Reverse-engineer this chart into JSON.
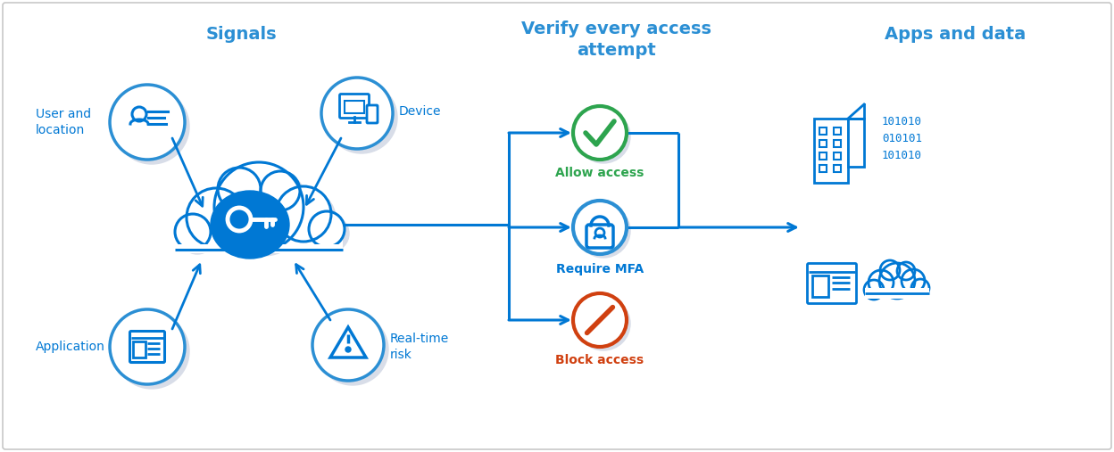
{
  "bg_color": "#ffffff",
  "border_color": "#c8c8c8",
  "blue": "#0078d4",
  "light_blue": "#2b8fd4",
  "green": "#2da44e",
  "orange_red": "#d04010",
  "gray_shadow": "#d8dde8",
  "title_signals": "Signals",
  "title_verify": "Verify every access\nattempt",
  "title_apps": "Apps and data",
  "label_user": "User and\nlocation",
  "label_device": "Device",
  "label_application": "Application",
  "label_realtime": "Real-time\nrisk",
  "label_allow": "Allow access",
  "label_mfa": "Require MFA",
  "label_block": "Block access",
  "figsize": [
    12.48,
    5.07
  ],
  "dpi": 100
}
